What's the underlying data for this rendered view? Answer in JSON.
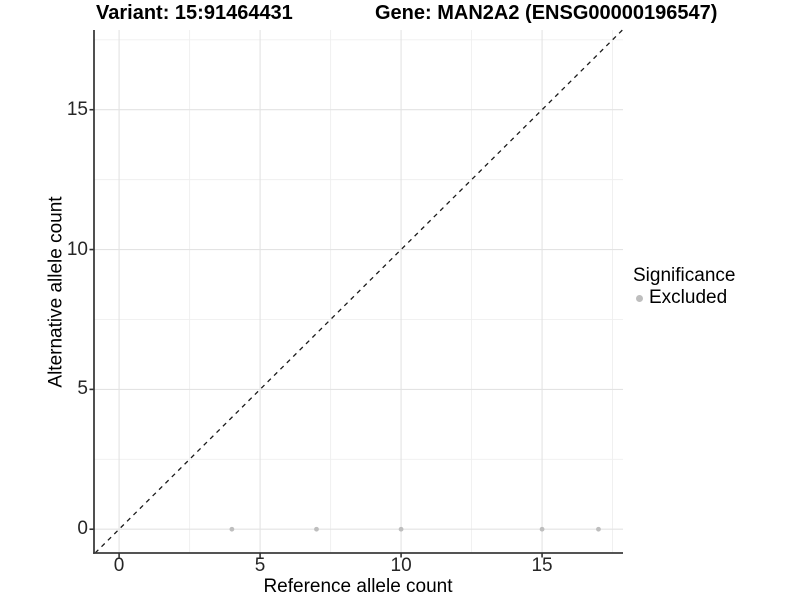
{
  "chart_data": {
    "type": "scatter",
    "title_left": "Variant: 15:91464431",
    "title_right": "Gene: MAN2A2 (ENSG00000196547)",
    "xlabel": "Reference allele count",
    "ylabel": "Alternative allele count",
    "xlim": [
      -0.89,
      17.87
    ],
    "ylim": [
      -0.85,
      17.85
    ],
    "x_major_ticks": [
      0,
      5,
      10,
      15
    ],
    "y_major_ticks": [
      0,
      5,
      10,
      15
    ],
    "x_minor_gridlines": [
      2.5,
      7.5,
      12.5,
      17.5
    ],
    "y_minor_gridlines": [
      2.5,
      7.5,
      12.5,
      17.5
    ],
    "grid": true,
    "series": [
      {
        "name": "Excluded",
        "color": "#bebebe",
        "points": [
          {
            "x": 4,
            "y": 0
          },
          {
            "x": 7,
            "y": 0
          },
          {
            "x": 10,
            "y": 0
          },
          {
            "x": 15,
            "y": 0
          },
          {
            "x": 17,
            "y": 0
          }
        ]
      }
    ],
    "reference_line": {
      "slope": 1,
      "intercept": 0,
      "linetype": "dashed",
      "color": "#1a1a1a"
    },
    "legend": {
      "title": "Significance",
      "position": "right",
      "items": [
        {
          "label": "Excluded",
          "color": "#bebebe"
        }
      ]
    }
  },
  "colors": {
    "background": "#ffffff",
    "grid_major": "#e3e3e3",
    "grid_minor": "#efefef",
    "axis_line": "#3c3c3c",
    "tick_mark": "#333333",
    "point": "#bebebe"
  }
}
